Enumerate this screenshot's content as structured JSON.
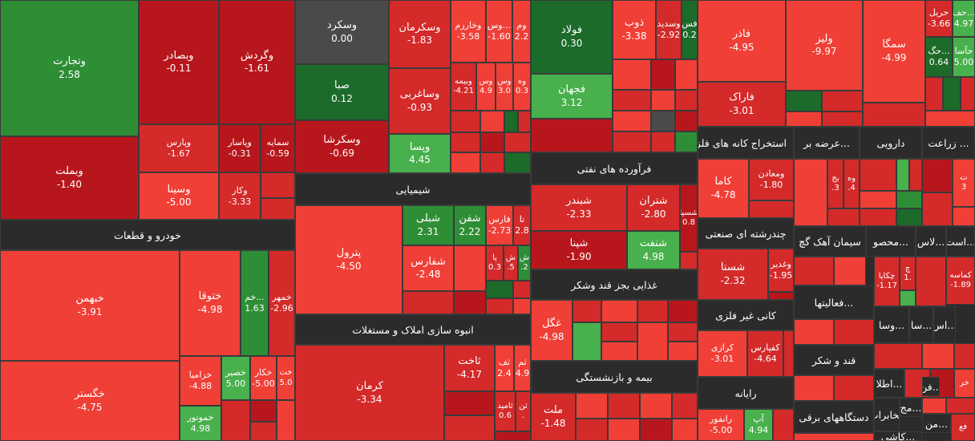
{
  "palette": {
    "red_dark": "#b7171c",
    "red": "#d42a2a",
    "red_light": "#f03f36",
    "green_dark": "#1c6b2a",
    "green": "#2e8e36",
    "green_light": "#48b04c",
    "gray": "#4a4a4a",
    "header_bg": "#2b2b2b"
  },
  "headers": {
    "auto_parts": "خودرو و قطعات",
    "chemical": "شیمیایی",
    "petroleum_products": "فرآورده های نفتی",
    "food_except_sugar": "غذایی بجز قند وشکر",
    "real_estate": "انبوه سازی املاک و مستغلات",
    "insurance": "بیمه و بازنشستگی",
    "metal_ore": "استخراج کانه های فلزی",
    "supply": "عرضه بر...",
    "pharma": "دارویی",
    "agriculture": "زراعت ...",
    "multi_industry": "چندرشته ای صنعتی",
    "cement": "سیمان آهک گچ",
    "contracting": "محصو...",
    "glass": "لاس...",
    "ast": "است...",
    "nonmetal": "کانی غیر فلزی",
    "activities": "فعالیتها...",
    "sugar": "قند و شکر",
    "computer": "رایانه",
    "electrical": "دستگاههای برقی",
    "tel": "مخابرات",
    "vsa": "وسا...",
    "sa": "سا...",
    "as": "اس...",
    "etla": "اطلا...",
    "fn": "فن...",
    "mj": "مج...",
    "man": "من...",
    "kasho": "کاشی..."
  },
  "tiles": {
    "vtejarat": {
      "name": "وتجارت",
      "value": "2.58"
    },
    "vbemellat": {
      "name": "وبملت",
      "value": "-1.40"
    },
    "vbesadr": {
      "name": "وبصادر",
      "value": "-0.11"
    },
    "vgardesh": {
      "name": "وگردش",
      "value": "-1.61"
    },
    "vparis": {
      "name": "وپارس",
      "value": "-1.67"
    },
    "vpasar": {
      "name": "وپاسار",
      "value": "-0.31"
    },
    "samaye": {
      "name": "سمایه",
      "value": "-0.59"
    },
    "vsina": {
      "name": "وسینا",
      "value": "-5.00"
    },
    "vkar": {
      "name": "وکار",
      "value": "-3.33"
    },
    "khbahman": {
      "name": "خبهمن",
      "value": "-3.91"
    },
    "khtogha": {
      "name": "ختوقا",
      "value": "-4.98"
    },
    "khm": {
      "name": "خم...",
      "value": "1.63"
    },
    "khmehr": {
      "name": "خمهر",
      "value": "-2.96"
    },
    "khgostar": {
      "name": "خگستر",
      "value": "-4.75"
    },
    "khzamia": {
      "name": "خزامیا",
      "value": "-4.88"
    },
    "khzar": {
      "name": "خصیر",
      "value": "5.00"
    },
    "khkar": {
      "name": "خکار",
      "value": "-5.00"
    },
    "kht": {
      "name": "خت",
      "value": "5.0"
    },
    "khmotor": {
      "name": "خموتور",
      "value": "4.98"
    },
    "vsakord": {
      "name": "وسکرد",
      "value": "0.00"
    },
    "seba": {
      "name": "صبا",
      "value": "0.12"
    },
    "vskrsha": {
      "name": "وسکرشا",
      "value": "-0.69"
    },
    "vskerman": {
      "name": "وسکرمان",
      "value": "-1.83"
    },
    "vsaghrbi": {
      "name": "وساغربی",
      "value": "-0.93"
    },
    "vpesa": {
      "name": "وپسا",
      "value": "4.45"
    },
    "vkharazm": {
      "name": "وخارزم",
      "value": "-3.58"
    },
    "vs1": {
      "name": "وس...",
      "value": "-1.60"
    },
    "vm": {
      "name": "وم",
      "value": "2.2"
    },
    "vbime": {
      "name": "وبیمه",
      "value": "-4.21"
    },
    "vs2": {
      "name": "وس",
      "value": "4.9"
    },
    "vs3": {
      "name": "وس",
      "value": "3.0"
    },
    "vh": {
      "name": "وه",
      "value": "0.3"
    },
    "fooolad": {
      "name": "فولاد",
      "value": "0.30"
    },
    "fajahan": {
      "name": "فجهان",
      "value": "3.12"
    },
    "zob": {
      "name": "ذوب",
      "value": "-3.38"
    },
    "vsadid": {
      "name": "وسدید",
      "value": "-2.92"
    },
    "fs": {
      "name": "فس",
      "value": "0.2"
    },
    "fakhr": {
      "name": "فاذر",
      "value": "-4.95"
    },
    "faraak": {
      "name": "فاراک",
      "value": "-3.01"
    },
    "valiz": {
      "name": "ولیز",
      "value": "-9.97"
    },
    "semga": {
      "name": "سمگا",
      "value": "-4.99"
    },
    "hril": {
      "name": "حریل",
      "value": "-3.66"
    },
    "haf": {
      "name": "حف...",
      "value": "4.97"
    },
    "hag": {
      "name": "حگ...",
      "value": "0.64"
    },
    "hasa": {
      "name": "حآسا",
      "value": "5.00"
    },
    "shebli": {
      "name": "شبلی",
      "value": "2.31"
    },
    "shafan": {
      "name": "شفن",
      "value": "2.22"
    },
    "fares": {
      "name": "فارس",
      "value": "-2.73"
    },
    "ta": {
      "name": "تا",
      "value": "2.8"
    },
    "petrol": {
      "name": "پترول",
      "value": "-4.50"
    },
    "shefars": {
      "name": "شفارس",
      "value": "-2.48"
    },
    "pa": {
      "name": "پا",
      "value": "0.3"
    },
    "sh1": {
      "name": "ش",
      "value": ".5"
    },
    "sh2": {
      "name": "ش",
      "value": ".2"
    },
    "shebandar": {
      "name": "شبندر",
      "value": "-2.33"
    },
    "shetran": {
      "name": "شتران",
      "value": "-2.80"
    },
    "shesepa": {
      "name": "شسپا",
      "value": "0.8"
    },
    "shepina": {
      "name": "شپنا",
      "value": "-1.90"
    },
    "shenaft": {
      "name": "شنفت",
      "value": "4.98"
    },
    "ghegel": {
      "name": "غگل",
      "value": "-4.98"
    },
    "kerman": {
      "name": "کرمان",
      "value": "-3.34"
    },
    "sakhat": {
      "name": "ثاخت",
      "value": "-4.17"
    },
    "saf": {
      "name": "ثف",
      "value": "2.4"
    },
    "sam": {
      "name": "ثم",
      "value": "4.9"
    },
    "saamid": {
      "name": "ثامید",
      "value": "0.6"
    },
    "sen": {
      "name": "ثن",
      "value": "."
    },
    "melat": {
      "name": "ملت",
      "value": "-1.48"
    },
    "kama": {
      "name": "کاما",
      "value": "-4.78"
    },
    "vmaaden": {
      "name": "ومعادن",
      "value": "-1.80"
    },
    "bj": {
      "name": "بج",
      "value": ".3"
    },
    "vh2": {
      "name": "وه",
      "value": ".4"
    },
    "t1": {
      "name": "ت",
      "value": "3"
    },
    "shasta": {
      "name": "شستا",
      "value": "-2.32"
    },
    "vghadir": {
      "name": "وغدیر",
      "value": "-1.95"
    },
    "chekapa": {
      "name": "چکاپا",
      "value": "-1.17"
    },
    "ch1": {
      "name": "چ",
      "value": "1."
    },
    "kmasa": {
      "name": "کماسه",
      "value": "-1.89"
    },
    "kerazi": {
      "name": "کرازی",
      "value": "-3.01"
    },
    "kefpars": {
      "name": "کفپارس",
      "value": "-4.64"
    },
    "ranfur": {
      "name": "رانفور",
      "value": "-5.00"
    },
    "ap": {
      "name": "آپ",
      "value": "4.94"
    },
    "khr": {
      "name": "خر",
      "value": ""
    },
    "fe": {
      "name": "فع",
      "value": ""
    }
  }
}
